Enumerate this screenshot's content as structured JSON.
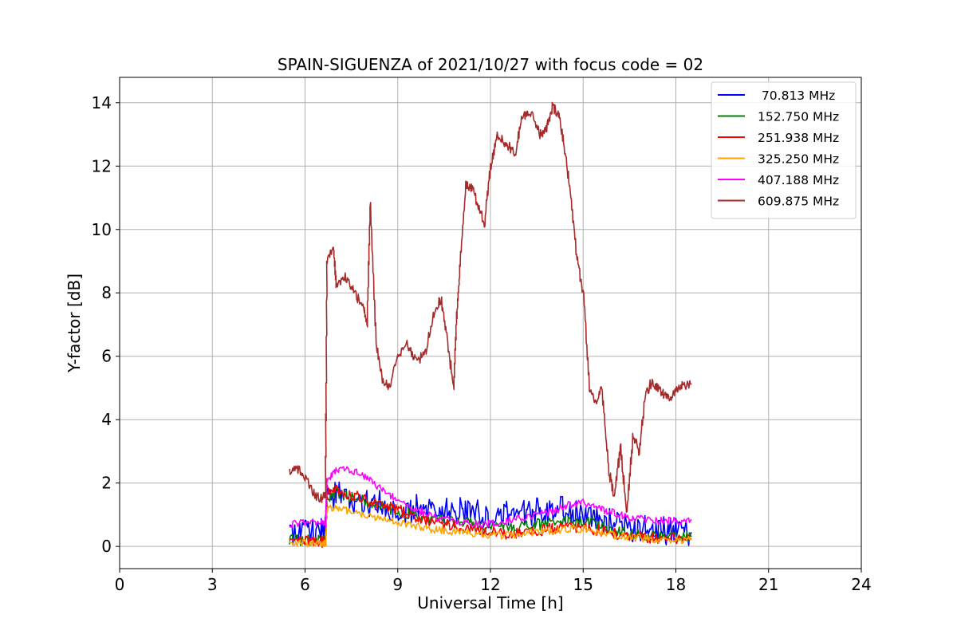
{
  "chart_data": {
    "type": "line",
    "title": "SPAIN-SIGUENZA of 2021/10/27 with focus code = 02",
    "xlabel": "Universal Time [h]",
    "ylabel": "Y-factor [dB]",
    "xlim": [
      0,
      24
    ],
    "ylim": [
      -0.7,
      14.8
    ],
    "xticks": [
      0,
      3,
      6,
      9,
      12,
      15,
      18,
      21,
      24
    ],
    "yticks": [
      0,
      2,
      4,
      6,
      8,
      10,
      12,
      14
    ],
    "grid": true,
    "legend_position": "top-right",
    "series": [
      {
        "name": " 70.813 MHz",
        "color": "#0000ff",
        "x": [
          5.5,
          6.0,
          6.5,
          6.65,
          6.7,
          7.0,
          7.5,
          8.0,
          8.5,
          9.0,
          9.5,
          10.0,
          10.5,
          11.0,
          11.5,
          12.0,
          12.5,
          13.0,
          13.5,
          14.0,
          14.5,
          15.0,
          15.5,
          16.0,
          16.5,
          17.0,
          17.5,
          18.0,
          18.5
        ],
        "y": [
          0.5,
          0.55,
          0.5,
          0.5,
          1.55,
          1.6,
          1.5,
          1.4,
          1.3,
          1.15,
          1.2,
          1.15,
          1.1,
          1.1,
          1.1,
          1.0,
          1.0,
          1.05,
          1.1,
          1.2,
          1.2,
          1.0,
          0.85,
          0.75,
          0.6,
          0.55,
          0.5,
          0.45,
          0.45
        ],
        "noise": 0.45
      },
      {
        "name": "152.750 MHz",
        "color": "#008000",
        "x": [
          5.5,
          6.0,
          6.5,
          6.65,
          6.7,
          7.0,
          7.5,
          8.0,
          8.5,
          9.0,
          9.5,
          10.0,
          10.5,
          11.0,
          11.5,
          12.0,
          12.5,
          13.0,
          13.5,
          14.0,
          14.5,
          15.0,
          15.5,
          16.0,
          16.5,
          17.0,
          17.5,
          18.0,
          18.5
        ],
        "y": [
          0.2,
          0.2,
          0.2,
          0.2,
          1.55,
          1.7,
          1.55,
          1.4,
          1.25,
          1.1,
          0.95,
          0.85,
          0.8,
          0.75,
          0.7,
          0.65,
          0.6,
          0.65,
          0.7,
          0.75,
          0.8,
          0.8,
          0.65,
          0.5,
          0.4,
          0.35,
          0.3,
          0.3,
          0.3
        ],
        "noise": 0.18
      },
      {
        "name": "251.938 MHz",
        "color": "#ff0000",
        "x": [
          5.5,
          6.0,
          6.5,
          6.65,
          6.7,
          7.0,
          7.5,
          8.0,
          8.5,
          9.0,
          9.5,
          10.0,
          10.5,
          11.0,
          11.5,
          12.0,
          12.5,
          13.0,
          13.5,
          14.0,
          14.5,
          15.0,
          15.5,
          16.0,
          16.5,
          17.0,
          17.5,
          18.0,
          18.5
        ],
        "y": [
          0.15,
          0.15,
          0.15,
          0.15,
          1.7,
          1.8,
          1.65,
          1.45,
          1.3,
          1.15,
          0.95,
          0.8,
          0.7,
          0.6,
          0.5,
          0.45,
          0.4,
          0.45,
          0.5,
          0.55,
          0.6,
          0.6,
          0.5,
          0.4,
          0.35,
          0.3,
          0.25,
          0.25,
          0.25
        ],
        "noise": 0.18
      },
      {
        "name": "325.250 MHz",
        "color": "#ffa500",
        "x": [
          5.5,
          6.0,
          6.5,
          6.65,
          6.7,
          7.0,
          7.5,
          8.0,
          8.5,
          9.0,
          9.5,
          10.0,
          10.5,
          11.0,
          11.5,
          12.0,
          12.5,
          13.0,
          13.5,
          14.0,
          14.5,
          15.0,
          15.5,
          16.0,
          16.5,
          17.0,
          17.5,
          18.0,
          18.5
        ],
        "y": [
          0.1,
          0.1,
          0.1,
          0.1,
          1.2,
          1.2,
          1.1,
          0.95,
          0.85,
          0.75,
          0.65,
          0.55,
          0.5,
          0.45,
          0.4,
          0.35,
          0.35,
          0.4,
          0.45,
          0.5,
          0.55,
          0.55,
          0.45,
          0.35,
          0.3,
          0.25,
          0.2,
          0.2,
          0.2
        ],
        "noise": 0.12
      },
      {
        "name": "407.188 MHz",
        "color": "#ff00ff",
        "x": [
          5.5,
          6.0,
          6.5,
          6.65,
          6.7,
          7.0,
          7.5,
          8.0,
          8.5,
          9.0,
          9.5,
          10.0,
          10.5,
          11.0,
          11.5,
          12.0,
          12.5,
          13.0,
          13.5,
          14.0,
          14.5,
          15.0,
          15.5,
          16.0,
          16.5,
          17.0,
          17.5,
          18.0,
          18.5
        ],
        "y": [
          0.7,
          0.75,
          0.7,
          0.7,
          2.1,
          2.4,
          2.4,
          2.2,
          1.75,
          1.45,
          1.2,
          1.0,
          0.85,
          0.75,
          0.7,
          0.7,
          0.8,
          0.9,
          1.0,
          1.1,
          1.3,
          1.4,
          1.2,
          1.05,
          0.9,
          0.85,
          0.8,
          0.8,
          0.85
        ],
        "noise": 0.12
      },
      {
        "name": "609.875 MHz",
        "color": "#a52a2a",
        "x": [
          5.5,
          5.8,
          6.1,
          6.3,
          6.5,
          6.65,
          6.7,
          6.9,
          7.0,
          7.3,
          7.6,
          7.9,
          8.0,
          8.1,
          8.3,
          8.5,
          8.7,
          9.0,
          9.3,
          9.6,
          9.9,
          10.2,
          10.4,
          10.6,
          10.8,
          10.9,
          11.0,
          11.2,
          11.4,
          11.6,
          11.8,
          12.0,
          12.2,
          12.5,
          12.8,
          13.0,
          13.3,
          13.6,
          13.8,
          14.0,
          14.2,
          14.4,
          14.6,
          14.8,
          15.0,
          15.2,
          15.4,
          15.6,
          15.8,
          16.0,
          16.2,
          16.4,
          16.6,
          16.8,
          17.0,
          17.2,
          17.4,
          17.6,
          17.8,
          18.0,
          18.2,
          18.5
        ],
        "y": [
          2.4,
          2.4,
          2.0,
          1.6,
          1.5,
          1.6,
          9.0,
          9.5,
          8.3,
          8.5,
          8.0,
          7.5,
          7.0,
          10.8,
          6.3,
          5.3,
          5.0,
          6.0,
          6.4,
          5.8,
          6.2,
          7.5,
          7.8,
          6.5,
          5.0,
          7.3,
          8.8,
          11.4,
          11.3,
          10.7,
          10.2,
          12.0,
          13.0,
          12.7,
          12.4,
          13.6,
          13.7,
          13.0,
          13.2,
          13.9,
          13.6,
          12.5,
          11.0,
          9.0,
          8.0,
          5.0,
          4.5,
          5.0,
          2.5,
          1.5,
          3.2,
          1.0,
          3.5,
          3.0,
          4.7,
          5.2,
          5.0,
          4.8,
          4.7,
          5.0,
          5.1,
          5.1
        ],
        "noise": 0.15
      }
    ]
  }
}
